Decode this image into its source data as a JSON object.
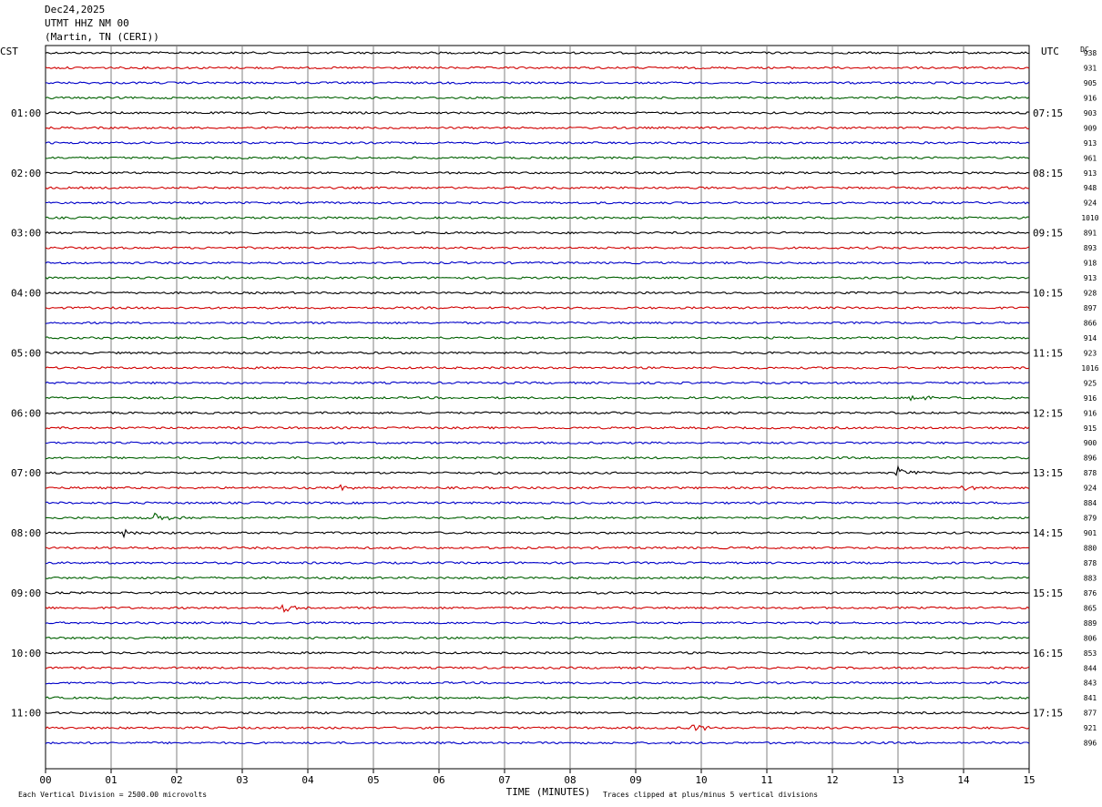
{
  "header": {
    "date": "Dec24,2025",
    "station": "UTMT HHZ NM 00",
    "location": "(Martin, TN (CERI))"
  },
  "left_tz": "CST",
  "right_tz": "UTC",
  "dc_header": "DC",
  "footer": {
    "left_note": "Each Vertical Division = 2500.00 microvolts",
    "xlabel": "TIME (MINUTES)",
    "right_note": "Traces clipped at plus/minus 5 vertical divisions"
  },
  "colors": {
    "cycle": [
      "#000000",
      "#d00000",
      "#0000c8",
      "#006000"
    ],
    "grid": "#808080"
  },
  "chart_data": {
    "type": "line",
    "title": "UTMT HHZ NM 00",
    "xlabel": "TIME (MINUTES)",
    "xlim": [
      0,
      15
    ],
    "x_ticks": [
      "00",
      "01",
      "02",
      "03",
      "04",
      "05",
      "06",
      "07",
      "08",
      "09",
      "10",
      "11",
      "12",
      "13",
      "14",
      "15"
    ],
    "hour_labels_left": [
      "01:00",
      "02:00",
      "03:00",
      "04:00",
      "05:00",
      "06:00",
      "07:00",
      "08:00",
      "09:00",
      "10:00",
      "11:00"
    ],
    "hour_labels_right": [
      "07:15",
      "08:15",
      "09:15",
      "10:15",
      "11:15",
      "12:15",
      "13:15",
      "14:15",
      "15:15",
      "16:15",
      "17:15"
    ],
    "dc_values": [
      "938",
      "931",
      "905",
      "916",
      "903",
      "909",
      "913",
      "961",
      "913",
      "948",
      "924",
      "1010",
      "891",
      "893",
      "918",
      "913",
      "928",
      "897",
      "866",
      "914",
      "923",
      "1016",
      "925",
      "916",
      "916",
      "915",
      "900",
      "896",
      "878",
      "924",
      "884",
      "879",
      "901",
      "880",
      "878",
      "883",
      "876",
      "865",
      "889",
      "806",
      "853",
      "844",
      "843",
      "841",
      "877",
      "921",
      "896"
    ],
    "events": [
      {
        "trace": 28,
        "minute": 13.0,
        "amp": 6
      },
      {
        "trace": 31,
        "minute": 1.68,
        "amp": 7
      },
      {
        "trace": 32,
        "minute": 1.2,
        "amp": 4
      },
      {
        "trace": 37,
        "minute": 3.62,
        "amp": 6
      },
      {
        "trace": 45,
        "minute": 9.87,
        "amp": 7
      },
      {
        "trace": 23,
        "minute": 13.2,
        "amp": 4
      },
      {
        "trace": 29,
        "minute": 4.5,
        "amp": 3
      },
      {
        "trace": 29,
        "minute": 14.0,
        "amp": 3
      }
    ]
  }
}
